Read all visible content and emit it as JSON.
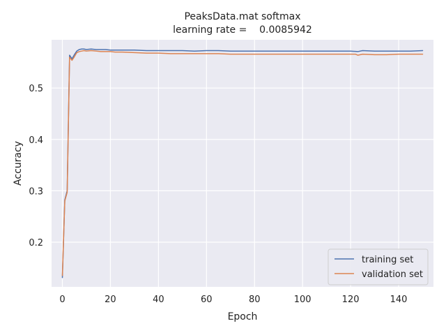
{
  "chart_data": {
    "type": "line",
    "title": "PeaksData.mat softmax",
    "subtitle": "learning rate =    0.0085942",
    "xlabel": "Epoch",
    "ylabel": "Accuracy",
    "xlim": [
      -4.5,
      154.5
    ],
    "ylim": [
      0.113,
      0.594
    ],
    "xticks": [
      0,
      20,
      40,
      60,
      80,
      100,
      120,
      140
    ],
    "xtick_labels": [
      "0",
      "20",
      "40",
      "60",
      "80",
      "100",
      "120",
      "140"
    ],
    "yticks": [
      0.2,
      0.3,
      0.4,
      0.5
    ],
    "ytick_labels": [
      "0.2",
      "0.3",
      "0.4",
      "0.5"
    ],
    "grid": true,
    "legend_position": "lower-right",
    "series": [
      {
        "name": "training set",
        "color": "#4c72b0",
        "x": [
          0,
          1,
          2,
          3,
          4,
          5,
          6,
          7,
          8,
          9,
          10,
          12,
          14,
          16,
          18,
          20,
          22,
          25,
          30,
          35,
          40,
          45,
          50,
          55,
          60,
          65,
          70,
          75,
          80,
          85,
          90,
          95,
          100,
          105,
          110,
          115,
          120,
          123,
          125,
          130,
          135,
          140,
          142,
          145,
          150
        ],
        "y": [
          0.131,
          0.282,
          0.3,
          0.564,
          0.557,
          0.565,
          0.572,
          0.575,
          0.576,
          0.576,
          0.575,
          0.576,
          0.575,
          0.575,
          0.575,
          0.574,
          0.574,
          0.574,
          0.574,
          0.573,
          0.573,
          0.573,
          0.573,
          0.572,
          0.573,
          0.573,
          0.572,
          0.572,
          0.572,
          0.572,
          0.572,
          0.572,
          0.572,
          0.572,
          0.572,
          0.572,
          0.572,
          0.571,
          0.573,
          0.572,
          0.572,
          0.572,
          0.572,
          0.572,
          0.573
        ]
      },
      {
        "name": "validation set",
        "color": "#dd8452",
        "x": [
          0,
          1,
          2,
          3,
          4,
          5,
          6,
          7,
          8,
          9,
          10,
          12,
          14,
          16,
          18,
          20,
          22,
          25,
          30,
          35,
          40,
          45,
          50,
          55,
          60,
          65,
          70,
          75,
          80,
          85,
          90,
          95,
          100,
          105,
          110,
          115,
          120,
          122,
          123,
          125,
          130,
          135,
          140,
          145,
          150
        ],
        "y": [
          0.135,
          0.28,
          0.297,
          0.56,
          0.554,
          0.561,
          0.569,
          0.571,
          0.572,
          0.573,
          0.572,
          0.573,
          0.572,
          0.571,
          0.571,
          0.571,
          0.57,
          0.57,
          0.569,
          0.568,
          0.568,
          0.567,
          0.567,
          0.567,
          0.567,
          0.567,
          0.566,
          0.566,
          0.566,
          0.566,
          0.566,
          0.566,
          0.566,
          0.566,
          0.566,
          0.566,
          0.566,
          0.566,
          0.564,
          0.566,
          0.565,
          0.565,
          0.566,
          0.566,
          0.566
        ]
      }
    ]
  }
}
